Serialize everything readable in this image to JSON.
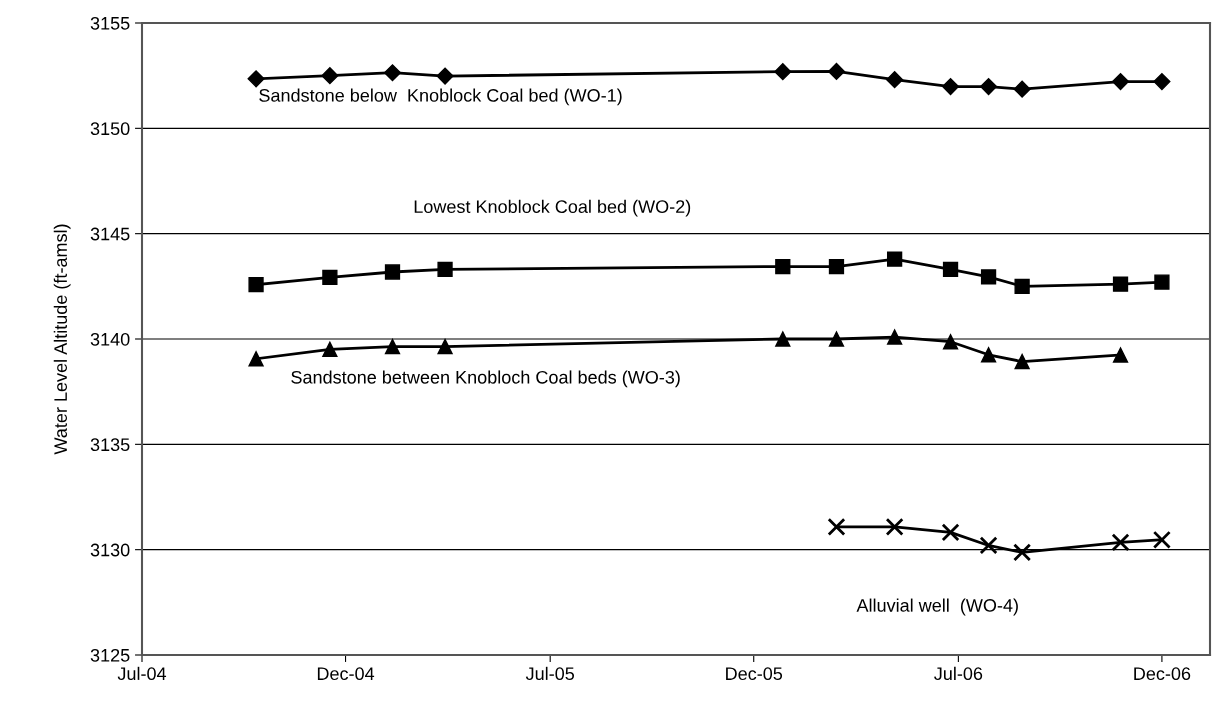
{
  "chart_data": {
    "type": "line",
    "ylabel": "Water Level Altitude (ft-amsl)",
    "xlim": [
      "2004-07-01",
      "2007-02-11"
    ],
    "ylim": [
      3125,
      3155
    ],
    "yticks": [
      3125,
      3130,
      3135,
      3140,
      3145,
      3150,
      3155
    ],
    "xticks": [
      {
        "value": "2004-07-01",
        "label": "Jul-04"
      },
      {
        "value": "2004-12-30",
        "label": "Dec-04"
      },
      {
        "value": "2005-07-01",
        "label": "Jul-05"
      },
      {
        "value": "2005-12-30",
        "label": "Dec-05"
      },
      {
        "value": "2006-07-01",
        "label": "Jul-06"
      },
      {
        "value": "2006-12-30",
        "label": "Dec-06"
      }
    ],
    "grid": "y",
    "legend": false,
    "line_style": "solid",
    "series": [
      {
        "name": "Sandstone below  Knoblock Coal bed (WO-1)",
        "color": "#000000",
        "marker": "diamond",
        "x": [
          "2004-10-11",
          "2004-12-16",
          "2005-02-10",
          "2005-03-29",
          "2006-01-25",
          "2006-03-14",
          "2006-05-05",
          "2006-06-24",
          "2006-07-28",
          "2006-08-27",
          "2006-11-23",
          "2006-12-30"
        ],
        "values": [
          3152.35,
          3152.5,
          3152.64,
          3152.48,
          3152.69,
          3152.7,
          3152.31,
          3151.98,
          3151.98,
          3151.86,
          3152.22,
          3152.22
        ]
      },
      {
        "name": "Lowest Knoblock Coal bed (WO-2)",
        "color": "#000000",
        "marker": "square",
        "x": [
          "2004-10-11",
          "2004-12-16",
          "2005-02-10",
          "2005-03-29",
          "2006-01-25",
          "2006-03-14",
          "2006-05-05",
          "2006-06-24",
          "2006-07-28",
          "2006-08-27",
          "2006-11-23",
          "2006-12-30"
        ],
        "values": [
          3142.58,
          3142.93,
          3143.18,
          3143.3,
          3143.44,
          3143.44,
          3143.79,
          3143.31,
          3142.95,
          3142.5,
          3142.6,
          3142.7
        ]
      },
      {
        "name": "Sandstone between Knobloch Coal beds (WO-3)",
        "color": "#000000",
        "marker": "triangle",
        "x": [
          "2004-10-11",
          "2004-12-16",
          "2005-02-10",
          "2005-03-29",
          "2006-01-25",
          "2006-03-14",
          "2006-05-05",
          "2006-06-24",
          "2006-07-28",
          "2006-08-27",
          "2006-11-23"
        ],
        "values": [
          3139.06,
          3139.51,
          3139.64,
          3139.64,
          3140.0,
          3140.0,
          3140.09,
          3139.87,
          3139.25,
          3138.93,
          3139.24
        ]
      },
      {
        "name": "Alluvial well  (WO-4)",
        "color": "#000000",
        "marker": "cross",
        "x": [
          "2006-03-14",
          "2006-05-05",
          "2006-06-24",
          "2006-07-28",
          "2006-08-27",
          "2006-11-23",
          "2006-12-30"
        ],
        "values": [
          3131.08,
          3131.08,
          3130.82,
          3130.2,
          3129.87,
          3130.35,
          3130.47
        ]
      }
    ]
  }
}
